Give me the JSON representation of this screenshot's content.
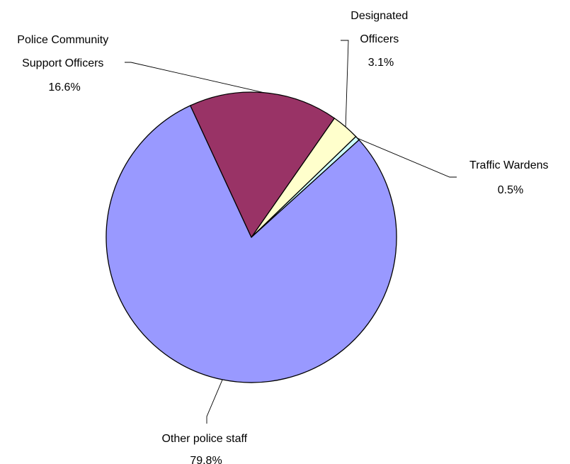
{
  "chart_data": {
    "type": "pie",
    "title": "",
    "start_angle_deg": 34.9,
    "direction": "clockwise",
    "slices": [
      {
        "label_lines": [
          "Designated",
          "Officers"
        ],
        "value_text": "3.1%",
        "value": 3.1,
        "color": "#FFFFCC"
      },
      {
        "label_lines": [
          "Traffic Wardens"
        ],
        "value_text": "0.5%",
        "value": 0.5,
        "color": "#CCFFFF"
      },
      {
        "label_lines": [
          "Other police staff"
        ],
        "value_text": "79.8%",
        "value": 79.8,
        "color": "#9999FF"
      },
      {
        "label_lines": [
          "Police Community",
          "Support Officers"
        ],
        "value_text": "16.6%",
        "value": 16.6,
        "color": "#993366"
      }
    ]
  }
}
